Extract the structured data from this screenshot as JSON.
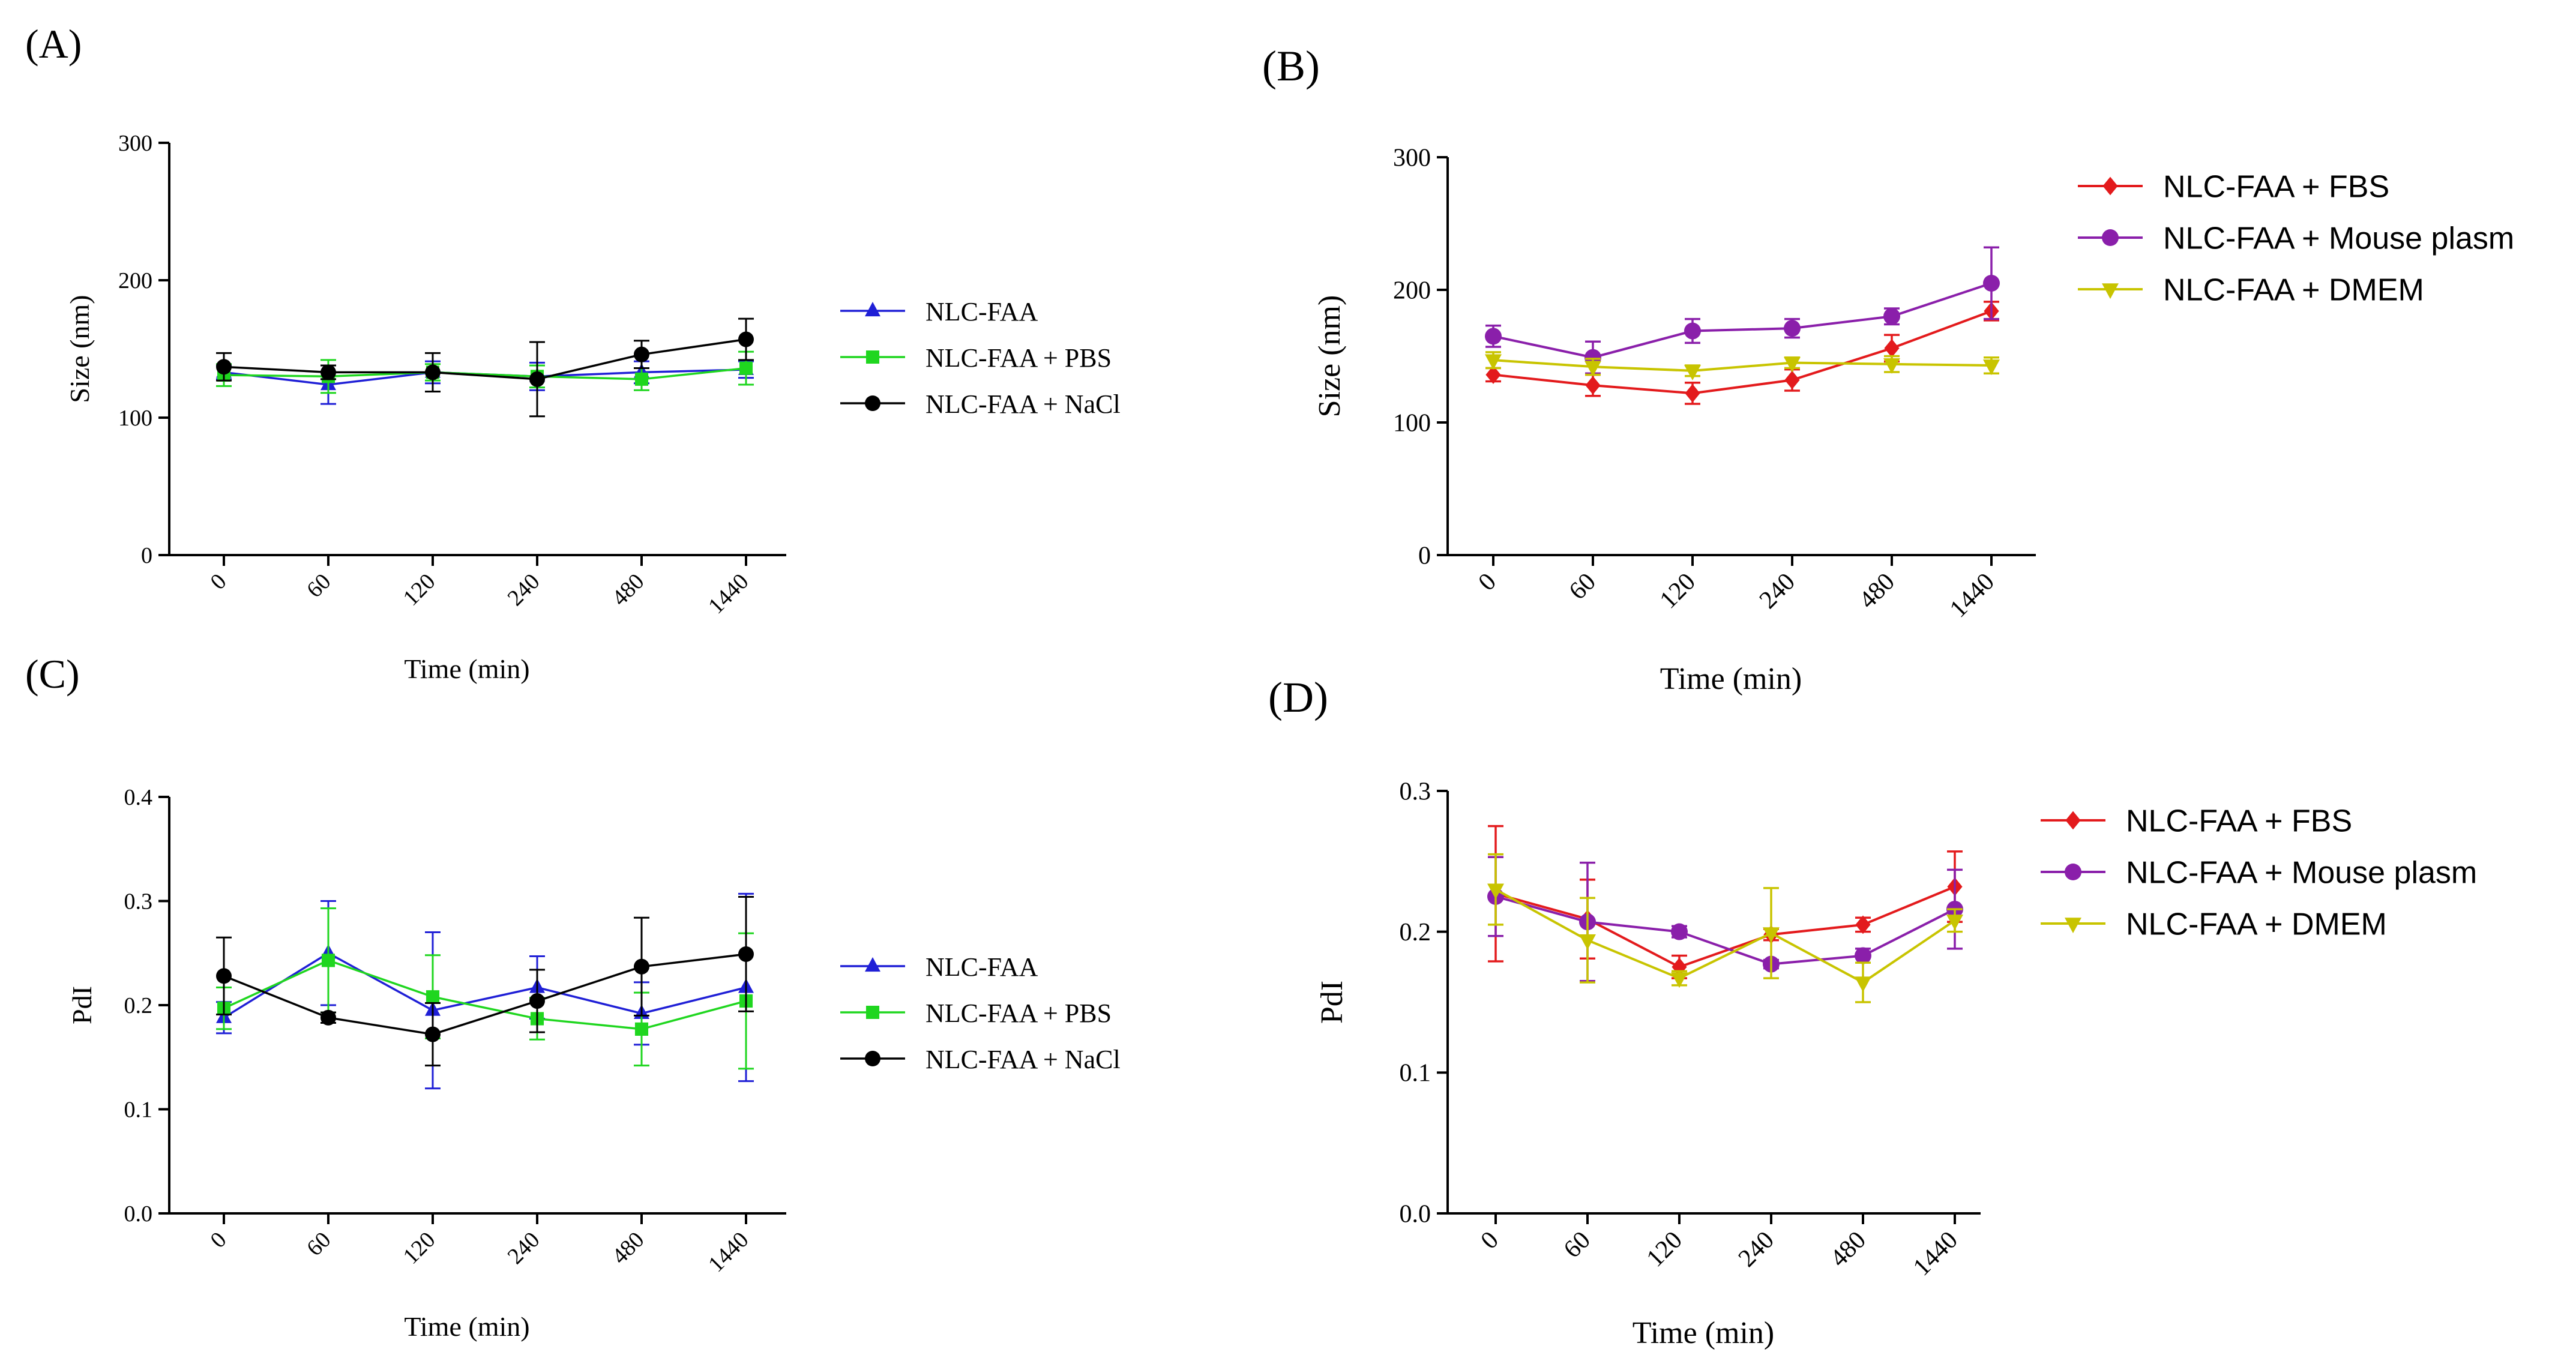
{
  "chart_data": [
    {
      "id": "A",
      "panel_label": "(A)",
      "type": "line",
      "title": "",
      "xlabel": "Time (min)",
      "ylabel": "Size (nm)",
      "categories": [
        "0",
        "60",
        "120",
        "240",
        "480",
        "1440"
      ],
      "ylim": [
        0,
        300
      ],
      "yticks": [
        "0",
        "100",
        "200",
        "300"
      ],
      "grid": false,
      "legend_position": "right",
      "series": [
        {
          "name": "NLC-FAA",
          "color": "#1f1fd6",
          "marker": "triangle-up",
          "values": [
            133,
            124,
            133,
            130,
            133,
            135
          ],
          "errors": [
            5,
            14,
            8,
            10,
            8,
            6
          ]
        },
        {
          "name": "NLC-FAA + PBS",
          "color": "#1fd61f",
          "marker": "square",
          "values": [
            131,
            130,
            133,
            130,
            128,
            136
          ],
          "errors": [
            8,
            12,
            6,
            8,
            8,
            12
          ]
        },
        {
          "name": "NLC-FAA + NaCl",
          "color": "#000000",
          "marker": "circle",
          "values": [
            137,
            133,
            133,
            128,
            146,
            157
          ],
          "errors": [
            10,
            5,
            14,
            27,
            10,
            15
          ]
        }
      ]
    },
    {
      "id": "B",
      "panel_label": "(B)",
      "type": "line",
      "title": "",
      "xlabel": "Time (min)",
      "ylabel": "Size (nm)",
      "categories": [
        "0",
        "60",
        "120",
        "240",
        "480",
        "1440"
      ],
      "ylim": [
        0,
        300
      ],
      "yticks": [
        "0",
        "100",
        "200",
        "300"
      ],
      "grid": false,
      "legend_position": "top-right",
      "series": [
        {
          "name": "NLC-FAA + FBS",
          "color": "#e31a1c",
          "marker": "diamond",
          "values": [
            136,
            128,
            122,
            132,
            156,
            184
          ],
          "errors": [
            5,
            8,
            8,
            8,
            10,
            7
          ]
        },
        {
          "name": "NLC-FAA + Mouse plasm",
          "color": "#8a1faa",
          "marker": "circle",
          "values": [
            165,
            149,
            169,
            171,
            180,
            205
          ],
          "errors": [
            8,
            12,
            9,
            7,
            6,
            27
          ]
        },
        {
          "name": "NLC-FAA + DMEM",
          "color": "#c8c400",
          "marker": "triangle-down",
          "values": [
            147,
            142,
            139,
            145,
            144,
            143
          ],
          "errors": [
            6,
            6,
            4,
            4,
            6,
            6
          ]
        }
      ]
    },
    {
      "id": "C",
      "panel_label": "(C)",
      "type": "line",
      "title": "",
      "xlabel": "Time (min)",
      "ylabel": "PdI",
      "categories": [
        "0",
        "60",
        "120",
        "240",
        "480",
        "1440"
      ],
      "ylim": [
        0,
        0.4
      ],
      "yticks": [
        "0.0",
        "0.1",
        "0.2",
        "0.3",
        "0.4"
      ],
      "grid": false,
      "legend_position": "right",
      "series": [
        {
          "name": "NLC-FAA",
          "color": "#1f1fd6",
          "marker": "triangle-up",
          "values": [
            0.188,
            0.25,
            0.195,
            0.217,
            0.192,
            0.217
          ],
          "errors": [
            0.015,
            0.05,
            0.075,
            0.03,
            0.03,
            0.09
          ]
        },
        {
          "name": "NLC-FAA + PBS",
          "color": "#1fd61f",
          "marker": "square",
          "values": [
            0.197,
            0.243,
            0.208,
            0.187,
            0.177,
            0.204
          ],
          "errors": [
            0.02,
            0.05,
            0.04,
            0.02,
            0.035,
            0.065
          ]
        },
        {
          "name": "NLC-FAA + NaCl",
          "color": "#000000",
          "marker": "circle",
          "values": [
            0.228,
            0.188,
            0.172,
            0.204,
            0.237,
            0.249
          ],
          "errors": [
            0.037,
            0.005,
            0.03,
            0.03,
            0.047,
            0.055
          ]
        }
      ]
    },
    {
      "id": "D",
      "panel_label": "(D)",
      "type": "line",
      "title": "",
      "xlabel": "Time (min)",
      "ylabel": "PdI",
      "categories": [
        "0",
        "60",
        "120",
        "240",
        "480",
        "1440"
      ],
      "ylim": [
        0,
        0.3
      ],
      "yticks": [
        "0.0",
        "0.1",
        "0.2",
        "0.3"
      ],
      "grid": false,
      "legend_position": "top-right",
      "series": [
        {
          "name": "NLC-FAA + FBS",
          "color": "#e31a1c",
          "marker": "diamond",
          "values": [
            0.227,
            0.209,
            0.175,
            0.198,
            0.205,
            0.232
          ],
          "errors": [
            0.048,
            0.028,
            0.008,
            0.004,
            0.005,
            0.025
          ]
        },
        {
          "name": "NLC-FAA + Mouse plasm",
          "color": "#8a1faa",
          "marker": "circle",
          "values": [
            0.225,
            0.207,
            0.2,
            0.177,
            0.183,
            0.216
          ],
          "errors": [
            0.028,
            0.042,
            0.004,
            0.003,
            0.005,
            0.028
          ]
        },
        {
          "name": "NLC-FAA + DMEM",
          "color": "#c8c400",
          "marker": "triangle-down",
          "values": [
            0.23,
            0.194,
            0.167,
            0.199,
            0.164,
            0.208
          ],
          "errors": [
            0.025,
            0.03,
            0.005,
            0.032,
            0.014,
            0.008
          ]
        }
      ]
    }
  ]
}
